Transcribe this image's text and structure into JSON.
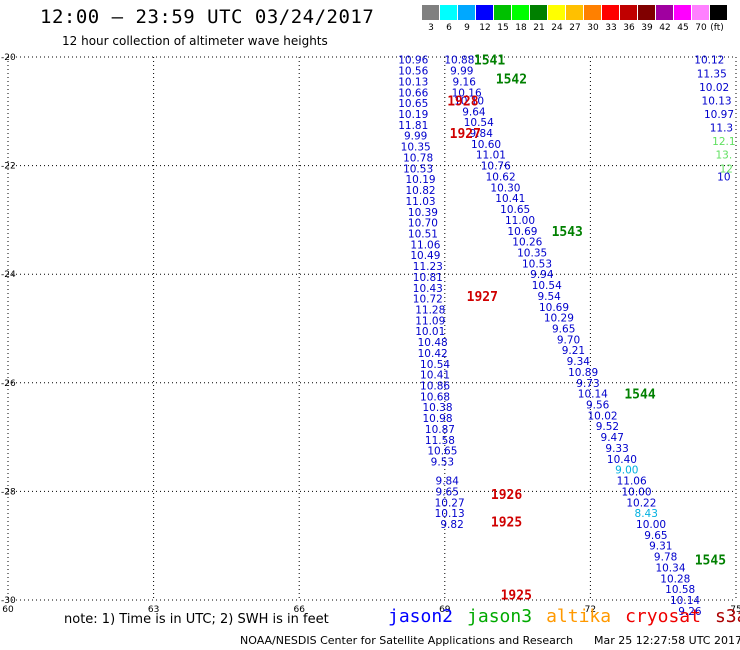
{
  "header": {
    "title": "12:00 – 23:59 UTC 03/24/2017",
    "subtitle": "12 hour collection of altimeter wave heights"
  },
  "color_scale": {
    "unit_label": "(ft)",
    "bins": [
      {
        "label": "3",
        "color": "#808080"
      },
      {
        "label": "6",
        "color": "#00ffff"
      },
      {
        "label": "9",
        "color": "#00a8ff"
      },
      {
        "label": "12",
        "color": "#0000ff"
      },
      {
        "label": "15",
        "color": "#00c000"
      },
      {
        "label": "18",
        "color": "#00ff00"
      },
      {
        "label": "21",
        "color": "#008000"
      },
      {
        "label": "24",
        "color": "#ffff00"
      },
      {
        "label": "27",
        "color": "#ffc000"
      },
      {
        "label": "30",
        "color": "#ff8000"
      },
      {
        "label": "33",
        "color": "#ff0000"
      },
      {
        "label": "36",
        "color": "#c00000"
      },
      {
        "label": "39",
        "color": "#800000"
      },
      {
        "label": "42",
        "color": "#a000a0"
      },
      {
        "label": "45",
        "color": "#ff00ff"
      },
      {
        "label": "70",
        "color": "#ff80ff"
      },
      {
        "label": "",
        "color": "#000000"
      }
    ]
  },
  "chart_data": {
    "type": "scatter",
    "xlim": [
      60,
      75
    ],
    "ylim": [
      -30,
      -20
    ],
    "x_ticks": [
      "60",
      "63",
      "66",
      "69",
      "72",
      "75"
    ],
    "y_ticks": [
      "-20",
      "-22",
      "-24",
      "-26",
      "-28",
      "-30"
    ],
    "grid": true,
    "series": [
      {
        "name": "jason2",
        "color": "#0000cc",
        "points": [
          {
            "x": 68.35,
            "y": -20.05,
            "v": "10.96"
          },
          {
            "x": 68.35,
            "y": -20.25,
            "v": "10.56"
          },
          {
            "x": 68.35,
            "y": -20.45,
            "v": "10.13"
          },
          {
            "x": 68.35,
            "y": -20.65,
            "v": "10.66"
          },
          {
            "x": 68.35,
            "y": -20.85,
            "v": "10.65"
          },
          {
            "x": 68.35,
            "y": -21.05,
            "v": "10.19"
          },
          {
            "x": 68.35,
            "y": -21.25,
            "v": "11.81"
          },
          {
            "x": 68.4,
            "y": -21.45,
            "v": "9.99"
          },
          {
            "x": 68.4,
            "y": -21.65,
            "v": "10.35"
          },
          {
            "x": 68.45,
            "y": -21.85,
            "v": "10.78"
          },
          {
            "x": 68.45,
            "y": -22.05,
            "v": "10.53"
          },
          {
            "x": 68.5,
            "y": -22.25,
            "v": "10.19"
          },
          {
            "x": 68.5,
            "y": -22.45,
            "v": "10.82"
          },
          {
            "x": 68.5,
            "y": -22.65,
            "v": "11.03"
          },
          {
            "x": 68.55,
            "y": -22.85,
            "v": "10.39"
          },
          {
            "x": 68.55,
            "y": -23.05,
            "v": "10.70"
          },
          {
            "x": 68.55,
            "y": -23.25,
            "v": "10.51"
          },
          {
            "x": 68.6,
            "y": -23.45,
            "v": "11.06"
          },
          {
            "x": 68.6,
            "y": -23.65,
            "v": "10.49"
          },
          {
            "x": 68.65,
            "y": -23.85,
            "v": "11.23"
          },
          {
            "x": 68.65,
            "y": -24.05,
            "v": "10.81"
          },
          {
            "x": 68.65,
            "y": -24.25,
            "v": "10.43"
          },
          {
            "x": 68.65,
            "y": -24.45,
            "v": "10.72"
          },
          {
            "x": 68.7,
            "y": -24.65,
            "v": "11.28"
          },
          {
            "x": 68.7,
            "y": -24.85,
            "v": "11.09"
          },
          {
            "x": 68.7,
            "y": -25.05,
            "v": "10.01"
          },
          {
            "x": 68.75,
            "y": -25.25,
            "v": "10.48"
          },
          {
            "x": 68.75,
            "y": -25.45,
            "v": "10.42"
          },
          {
            "x": 68.8,
            "y": -25.65,
            "v": "10.54"
          },
          {
            "x": 68.8,
            "y": -25.85,
            "v": "10.41"
          },
          {
            "x": 68.8,
            "y": -26.05,
            "v": "10.86"
          },
          {
            "x": 68.8,
            "y": -26.25,
            "v": "10.68"
          },
          {
            "x": 68.85,
            "y": -26.45,
            "v": "10.38"
          },
          {
            "x": 68.85,
            "y": -26.65,
            "v": "10.98"
          },
          {
            "x": 68.9,
            "y": -26.85,
            "v": "10.87"
          },
          {
            "x": 68.9,
            "y": -27.05,
            "v": "11.58"
          },
          {
            "x": 68.95,
            "y": -27.25,
            "v": "10.65"
          },
          {
            "x": 68.95,
            "y": -27.45,
            "v": "9.53"
          },
          {
            "x": 69.05,
            "y": -27.8,
            "v": "9.84"
          },
          {
            "x": 69.05,
            "y": -28.0,
            "v": "9.65"
          },
          {
            "x": 69.1,
            "y": -28.2,
            "v": "10.27"
          },
          {
            "x": 69.1,
            "y": -28.4,
            "v": "10.13"
          },
          {
            "x": 69.15,
            "y": -28.6,
            "v": "9.82"
          },
          {
            "x": 69.3,
            "y": -20.05,
            "v": "10.88"
          },
          {
            "x": 69.35,
            "y": -20.25,
            "v": "9.99"
          },
          {
            "x": 69.4,
            "y": -20.45,
            "v": "9.16"
          },
          {
            "x": 69.45,
            "y": -20.65,
            "v": "10.16"
          },
          {
            "x": 69.5,
            "y": -20.8,
            "v": "10.10"
          },
          {
            "x": 69.6,
            "y": -21.0,
            "v": "9.64"
          },
          {
            "x": 69.7,
            "y": -21.2,
            "v": "10.54"
          },
          {
            "x": 69.75,
            "y": -21.4,
            "v": "9.84"
          },
          {
            "x": 69.85,
            "y": -21.6,
            "v": "10.60"
          },
          {
            "x": 69.95,
            "y": -21.8,
            "v": "11.01"
          },
          {
            "x": 70.05,
            "y": -22.0,
            "v": "10.76"
          },
          {
            "x": 70.15,
            "y": -22.2,
            "v": "10.62"
          },
          {
            "x": 70.25,
            "y": -22.4,
            "v": "10.30"
          },
          {
            "x": 70.35,
            "y": -22.6,
            "v": "10.41"
          },
          {
            "x": 70.45,
            "y": -22.8,
            "v": "10.65"
          },
          {
            "x": 70.55,
            "y": -23.0,
            "v": "11.00"
          },
          {
            "x": 70.6,
            "y": -23.2,
            "v": "10.69"
          },
          {
            "x": 70.7,
            "y": -23.4,
            "v": "10.26"
          },
          {
            "x": 70.8,
            "y": -23.6,
            "v": "10.35"
          },
          {
            "x": 70.9,
            "y": -23.8,
            "v": "10.53"
          },
          {
            "x": 71.0,
            "y": -24.0,
            "v": "9.94"
          },
          {
            "x": 71.1,
            "y": -24.2,
            "v": "10.54"
          },
          {
            "x": 71.15,
            "y": -24.4,
            "v": "9.54"
          },
          {
            "x": 71.25,
            "y": -24.6,
            "v": "10.69"
          },
          {
            "x": 71.35,
            "y": -24.8,
            "v": "10.29"
          },
          {
            "x": 71.45,
            "y": -25.0,
            "v": "9.65"
          },
          {
            "x": 71.55,
            "y": -25.2,
            "v": "9.70"
          },
          {
            "x": 71.65,
            "y": -25.4,
            "v": "9.21"
          },
          {
            "x": 71.75,
            "y": -25.6,
            "v": "9.34"
          },
          {
            "x": 71.85,
            "y": -25.8,
            "v": "10.89"
          },
          {
            "x": 71.95,
            "y": -26.0,
            "v": "9.73"
          },
          {
            "x": 72.05,
            "y": -26.2,
            "v": "10.14"
          },
          {
            "x": 72.15,
            "y": -26.4,
            "v": "9.56"
          },
          {
            "x": 72.25,
            "y": -26.6,
            "v": "10.02"
          },
          {
            "x": 72.35,
            "y": -26.8,
            "v": "9.52"
          },
          {
            "x": 72.45,
            "y": -27.0,
            "v": "9.47"
          },
          {
            "x": 72.55,
            "y": -27.2,
            "v": "9.33"
          },
          {
            "x": 72.65,
            "y": -27.4,
            "v": "10.40"
          },
          {
            "x": 72.85,
            "y": -27.8,
            "v": "11.06"
          },
          {
            "x": 72.95,
            "y": -28.0,
            "v": "10.00"
          },
          {
            "x": 73.05,
            "y": -28.2,
            "v": "10.22"
          },
          {
            "x": 73.25,
            "y": -28.6,
            "v": "10.00"
          },
          {
            "x": 73.35,
            "y": -28.8,
            "v": "9.65"
          },
          {
            "x": 73.45,
            "y": -29.0,
            "v": "9.31"
          },
          {
            "x": 73.55,
            "y": -29.2,
            "v": "9.78"
          },
          {
            "x": 73.65,
            "y": -29.4,
            "v": "10.34"
          },
          {
            "x": 73.75,
            "y": -29.6,
            "v": "10.28"
          },
          {
            "x": 73.85,
            "y": -29.8,
            "v": "10.58"
          },
          {
            "x": 73.95,
            "y": -30.0,
            "v": "10.14"
          },
          {
            "x": 74.05,
            "y": -30.2,
            "v": "9.26"
          },
          {
            "x": 74.45,
            "y": -20.05,
            "v": "10.12"
          },
          {
            "x": 74.5,
            "y": -20.3,
            "v": "11.35"
          },
          {
            "x": 74.55,
            "y": -20.55,
            "v": "10.02"
          },
          {
            "x": 74.6,
            "y": -20.8,
            "v": "10.13"
          },
          {
            "x": 74.65,
            "y": -21.05,
            "v": "10.97"
          },
          {
            "x": 74.7,
            "y": -21.3,
            "v": "11.3"
          },
          {
            "x": 74.75,
            "y": -22.2,
            "v": "10"
          }
        ]
      },
      {
        "name": "jason2-light",
        "color": "#00b0e0",
        "points": [
          {
            "x": 72.75,
            "y": -27.6,
            "v": "9.00"
          },
          {
            "x": 73.15,
            "y": -28.4,
            "v": "8.43"
          }
        ]
      },
      {
        "name": "jason3",
        "color": "#60e060",
        "points": [
          {
            "x": 74.75,
            "y": -21.55,
            "v": "12.1"
          },
          {
            "x": 74.75,
            "y": -21.8,
            "v": "13."
          },
          {
            "x": 74.8,
            "y": -22.05,
            "v": "12"
          }
        ]
      }
    ],
    "tracks": [
      {
        "label": "1541",
        "x": 69.6,
        "y": -20.05,
        "color": "#008000"
      },
      {
        "label": "1542",
        "x": 70.05,
        "y": -20.4,
        "color": "#008000"
      },
      {
        "label": "1543",
        "x": 71.2,
        "y": -23.2,
        "color": "#008000"
      },
      {
        "label": "1544",
        "x": 72.7,
        "y": -26.2,
        "color": "#008000"
      },
      {
        "label": "1545",
        "x": 74.15,
        "y": -29.25,
        "color": "#008000"
      },
      {
        "label": "1928",
        "x": 69.05,
        "y": -20.8,
        "color": "#d00000"
      },
      {
        "label": "1927",
        "x": 69.1,
        "y": -21.4,
        "color": "#d00000"
      },
      {
        "label": "1927",
        "x": 69.45,
        "y": -24.4,
        "color": "#d00000"
      },
      {
        "label": "1926",
        "x": 69.95,
        "y": -28.05,
        "color": "#d00000"
      },
      {
        "label": "1925",
        "x": 69.95,
        "y": -28.55,
        "color": "#d00000"
      },
      {
        "label": "1925",
        "x": 70.15,
        "y": -29.9,
        "color": "#d00000"
      }
    ]
  },
  "note": "note:  1) Time is in UTC;  2) SWH is in feet",
  "legend": [
    {
      "label": "jason2",
      "color": "#0000ff"
    },
    {
      "label": "jason3",
      "color": "#00aa00"
    },
    {
      "label": "altika",
      "color": "#ff9900"
    },
    {
      "label": "cryosat",
      "color": "#ee0000"
    },
    {
      "label": "s3a",
      "color": "#aa0000"
    }
  ],
  "footer": {
    "credit": "NOAA/NESDIS Center for Satellite Applications and Research",
    "timestamp": "Mar 25 12:27:58 UTC 2017"
  }
}
